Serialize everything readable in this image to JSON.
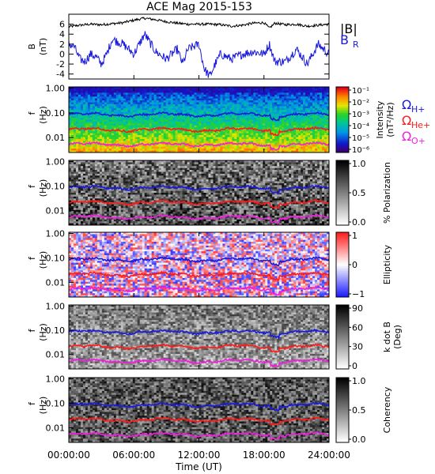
{
  "chart_data": [
    {
      "type": "line",
      "title": "ACE Mag 2015-153",
      "ylabel": "B",
      "yunit": "(nT)",
      "ylim": [
        -5,
        8
      ],
      "yticks": [
        "6",
        "4",
        "2",
        "0",
        "-2",
        "-4"
      ],
      "xlim_hours": [
        0,
        24
      ],
      "series": [
        {
          "name": "|B|",
          "color": "#000000",
          "x": [
            0,
            1,
            2,
            3,
            4,
            5,
            6,
            7,
            8,
            9,
            10,
            11,
            12,
            13,
            14,
            15,
            16,
            17,
            18,
            18.5,
            19,
            20,
            21,
            22,
            23,
            24
          ],
          "y": [
            5.5,
            5.8,
            6.0,
            5.9,
            6.1,
            6.3,
            6.8,
            7.2,
            6.9,
            6.5,
            6.2,
            6.0,
            6.0,
            6.0,
            5.9,
            5.6,
            5.8,
            6.2,
            6.3,
            5.2,
            6.2,
            5.9,
            6.0,
            5.6,
            5.8,
            6.0
          ]
        },
        {
          "name": "B",
          "subscript": "R",
          "color": "#1a1adc",
          "x": [
            0,
            0.5,
            1,
            1.5,
            2,
            2.5,
            3,
            3.5,
            4,
            5,
            6,
            7,
            8,
            9,
            10,
            10.5,
            11,
            12,
            12.5,
            13,
            13.5,
            14,
            15,
            16,
            17,
            18,
            18.5,
            19,
            20,
            21,
            22,
            23,
            24
          ],
          "y": [
            2,
            1.5,
            -1,
            -1.5,
            0,
            -0.5,
            -2,
            0,
            3,
            2,
            0,
            4,
            0.5,
            -1,
            1,
            -2,
            1,
            2,
            -3,
            -4.5,
            -2,
            0,
            -1,
            0,
            0.5,
            0,
            2,
            -1.5,
            -1.5,
            1,
            -2,
            2,
            0
          ]
        }
      ]
    },
    {
      "type": "heatmap",
      "ylabel": "f",
      "yunit": "(Hz)",
      "yticks": [
        "1.00",
        "0.10",
        "0.01"
      ],
      "colorbar": {
        "label": "Intensity",
        "unit": "(nT²/Hz)",
        "ticks": [
          "10⁻¹",
          "10⁻²",
          "10⁻³",
          "10⁻⁴",
          "10⁻⁵",
          "10⁻⁶"
        ],
        "range_log10": [
          -6.5,
          -0.5
        ]
      },
      "lines": [
        {
          "name": "Ω",
          "sub": "H+",
          "color": "#1a1adc",
          "f": 0.085
        },
        {
          "name": "Ω",
          "sub": "He+",
          "color": "#ff1a1a",
          "f": 0.021
        },
        {
          "name": "Ω",
          "sub": "O+",
          "color": "#ee20dd",
          "f": 0.0053
        }
      ]
    },
    {
      "type": "heatmap",
      "ylabel": "f",
      "yunit": "(Hz)",
      "yticks": [
        "1.00",
        "0.10",
        "0.01"
      ],
      "colorbar": {
        "label": "% Polarization",
        "ticks": [
          "1.0",
          "0.5",
          "0.0"
        ],
        "range": [
          0,
          1
        ]
      }
    },
    {
      "type": "heatmap",
      "ylabel": "f",
      "yunit": "(Hz)",
      "yticks": [
        "1.00",
        "0.10",
        "0.01"
      ],
      "colorbar": {
        "label": "Ellipticity",
        "ticks": [
          "1",
          "0",
          "−1"
        ],
        "range": [
          -1,
          1
        ]
      }
    },
    {
      "type": "heatmap",
      "ylabel": "f",
      "yunit": "(Hz)",
      "yticks": [
        "1.00",
        "0.10",
        "0.01"
      ],
      "colorbar": {
        "label": "k dot B",
        "unit": "(Deg)",
        "ticks": [
          "90",
          "60",
          "30",
          "0"
        ],
        "range": [
          0,
          90
        ]
      }
    },
    {
      "type": "heatmap",
      "ylabel": "f",
      "yunit": "(Hz)",
      "yticks": [
        "1.00",
        "0.10",
        "0.01"
      ],
      "colorbar": {
        "label": "Coherency",
        "ticks": [
          "1.0",
          "0.5",
          "0.0"
        ],
        "range": [
          0,
          1
        ]
      }
    }
  ],
  "xaxis": {
    "ticks": [
      "00:00:00",
      "06:00:00",
      "12:00:00",
      "18:00:00",
      "24:00:00"
    ],
    "label": "Time (UT)"
  }
}
